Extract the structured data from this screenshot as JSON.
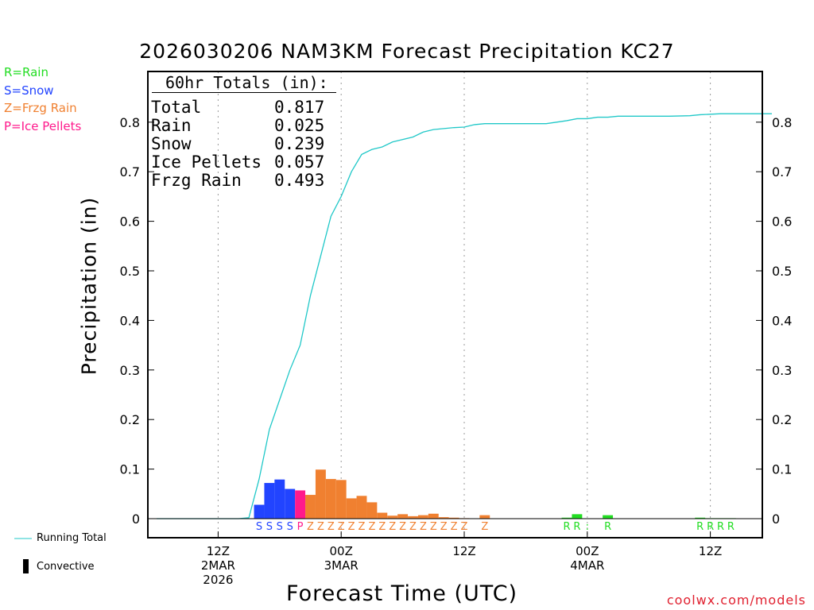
{
  "title": "2026030206 NAM3KM Forecast Precipitation KC27",
  "credit": "coolwx.com/models",
  "legend_keys": [
    {
      "text": "R=Rain",
      "color": "#22dd22"
    },
    {
      "text": "S=Snow",
      "color": "#2244ff"
    },
    {
      "text": "Z=Frzg Rain",
      "color": "#f08030"
    },
    {
      "text": "P=Ice Pellets",
      "color": "#ff1a8c"
    }
  ],
  "bottom_legend": {
    "running_total": "Running Total",
    "convective": "Convective"
  },
  "totals": {
    "heading": "60hr Totals (in):",
    "rows": [
      {
        "label": "Total",
        "value": "0.817"
      },
      {
        "label": "Rain",
        "value": "0.025"
      },
      {
        "label": "Snow",
        "value": "0.239"
      },
      {
        "label": "Ice Pellets",
        "value": "0.057"
      },
      {
        "label": "Frzg Rain",
        "value": "0.493"
      }
    ]
  },
  "colors": {
    "rain": "#22dd22",
    "snow": "#2244ff",
    "frzg": "#f08030",
    "ice": "#ff1a8c",
    "total": "#20c8c8"
  },
  "chart_data": {
    "type": "bar",
    "title": "2026030206 NAM3KM Forecast Precipitation KC27",
    "xlabel": "Forecast Time (UTC)",
    "ylabel": "Precipitation (in)",
    "ylim": [
      0,
      0.9
    ],
    "y_ticks": [
      "0",
      "0.1",
      "0.2",
      "0.3",
      "0.4",
      "0.5",
      "0.6",
      "0.7",
      "0.8"
    ],
    "y_tick_values": [
      0,
      0.1,
      0.2,
      0.3,
      0.4,
      0.5,
      0.6,
      0.7,
      0.8
    ],
    "x_range_hours": [
      0,
      60
    ],
    "x_ticks": [
      {
        "hour": 6,
        "lines": [
          "12Z",
          "2MAR",
          "2026"
        ]
      },
      {
        "hour": 18,
        "lines": [
          "00Z",
          "3MAR"
        ]
      },
      {
        "hour": 30,
        "lines": [
          "12Z"
        ]
      },
      {
        "hour": 42,
        "lines": [
          "00Z",
          "4MAR"
        ]
      },
      {
        "hour": 54,
        "lines": [
          "12Z"
        ]
      }
    ],
    "bars": [
      {
        "hour": 10,
        "value": 0.028,
        "type": "S"
      },
      {
        "hour": 11,
        "value": 0.072,
        "type": "S"
      },
      {
        "hour": 12,
        "value": 0.079,
        "type": "S"
      },
      {
        "hour": 13,
        "value": 0.06,
        "type": "S"
      },
      {
        "hour": 14,
        "value": 0.057,
        "type": "P"
      },
      {
        "hour": 15,
        "value": 0.048,
        "type": "Z"
      },
      {
        "hour": 16,
        "value": 0.099,
        "type": "Z"
      },
      {
        "hour": 17,
        "value": 0.08,
        "type": "Z"
      },
      {
        "hour": 18,
        "value": 0.078,
        "type": "Z"
      },
      {
        "hour": 19,
        "value": 0.041,
        "type": "Z"
      },
      {
        "hour": 20,
        "value": 0.046,
        "type": "Z"
      },
      {
        "hour": 21,
        "value": 0.033,
        "type": "Z"
      },
      {
        "hour": 22,
        "value": 0.012,
        "type": "Z"
      },
      {
        "hour": 23,
        "value": 0.006,
        "type": "Z"
      },
      {
        "hour": 24,
        "value": 0.009,
        "type": "Z"
      },
      {
        "hour": 25,
        "value": 0.005,
        "type": "Z"
      },
      {
        "hour": 26,
        "value": 0.007,
        "type": "Z"
      },
      {
        "hour": 27,
        "value": 0.01,
        "type": "Z"
      },
      {
        "hour": 28,
        "value": 0.003,
        "type": "Z"
      },
      {
        "hour": 29,
        "value": 0.002,
        "type": "Z"
      },
      {
        "hour": 30,
        "value": 0.001,
        "type": "Z"
      },
      {
        "hour": 32,
        "value": 0.007,
        "type": "Z"
      },
      {
        "hour": 40,
        "value": 0.002,
        "type": "R"
      },
      {
        "hour": 41,
        "value": 0.009,
        "type": "R"
      },
      {
        "hour": 44,
        "value": 0.007,
        "type": "R"
      },
      {
        "hour": 53,
        "value": 0.002,
        "type": "R"
      },
      {
        "hour": 54,
        "value": 0.001,
        "type": "R"
      },
      {
        "hour": 55,
        "value": 0.001,
        "type": "R"
      },
      {
        "hour": 56,
        "value": 0.001,
        "type": "R"
      }
    ],
    "type_labels": [
      {
        "hour": 10,
        "text": "S",
        "type": "S"
      },
      {
        "hour": 11,
        "text": "S",
        "type": "S"
      },
      {
        "hour": 12,
        "text": "S",
        "type": "S"
      },
      {
        "hour": 13,
        "text": "S",
        "type": "S"
      },
      {
        "hour": 14,
        "text": "P",
        "type": "P"
      },
      {
        "hour": 15,
        "text": "Z",
        "type": "Z"
      },
      {
        "hour": 16,
        "text": "Z",
        "type": "Z"
      },
      {
        "hour": 17,
        "text": "Z",
        "type": "Z"
      },
      {
        "hour": 18,
        "text": "Z",
        "type": "Z"
      },
      {
        "hour": 19,
        "text": "Z",
        "type": "Z"
      },
      {
        "hour": 20,
        "text": "Z",
        "type": "Z"
      },
      {
        "hour": 21,
        "text": "Z",
        "type": "Z"
      },
      {
        "hour": 22,
        "text": "Z",
        "type": "Z"
      },
      {
        "hour": 23,
        "text": "Z",
        "type": "Z"
      },
      {
        "hour": 24,
        "text": "Z",
        "type": "Z"
      },
      {
        "hour": 25,
        "text": "Z",
        "type": "Z"
      },
      {
        "hour": 26,
        "text": "Z",
        "type": "Z"
      },
      {
        "hour": 27,
        "text": "Z",
        "type": "Z"
      },
      {
        "hour": 28,
        "text": "Z",
        "type": "Z"
      },
      {
        "hour": 29,
        "text": "Z",
        "type": "Z"
      },
      {
        "hour": 30,
        "text": "Z",
        "type": "Z"
      },
      {
        "hour": 32,
        "text": "Z",
        "type": "Z"
      },
      {
        "hour": 40,
        "text": "R",
        "type": "R"
      },
      {
        "hour": 41,
        "text": "R",
        "type": "R"
      },
      {
        "hour": 42,
        "text": ":",
        "type": "R"
      },
      {
        "hour": 44,
        "text": "R",
        "type": "R"
      },
      {
        "hour": 53,
        "text": "R",
        "type": "R"
      },
      {
        "hour": 54,
        "text": "R",
        "type": "R"
      },
      {
        "hour": 55,
        "text": "R",
        "type": "R"
      },
      {
        "hour": 56,
        "text": "R",
        "type": "R"
      }
    ],
    "running_total": [
      [
        0,
        0
      ],
      [
        8,
        0
      ],
      [
        9,
        0.002
      ],
      [
        10,
        0.08
      ],
      [
        11,
        0.18
      ],
      [
        12,
        0.24
      ],
      [
        13,
        0.3
      ],
      [
        14,
        0.35
      ],
      [
        15,
        0.45
      ],
      [
        16,
        0.53
      ],
      [
        17,
        0.61
      ],
      [
        18,
        0.65
      ],
      [
        19,
        0.7
      ],
      [
        20,
        0.735
      ],
      [
        21,
        0.745
      ],
      [
        22,
        0.75
      ],
      [
        23,
        0.76
      ],
      [
        24,
        0.765
      ],
      [
        25,
        0.77
      ],
      [
        26,
        0.78
      ],
      [
        27,
        0.785
      ],
      [
        28,
        0.787
      ],
      [
        29,
        0.789
      ],
      [
        30,
        0.79
      ],
      [
        31,
        0.795
      ],
      [
        32,
        0.797
      ],
      [
        35,
        0.797
      ],
      [
        38,
        0.797
      ],
      [
        39,
        0.8
      ],
      [
        40,
        0.803
      ],
      [
        41,
        0.807
      ],
      [
        42,
        0.807
      ],
      [
        43,
        0.81
      ],
      [
        44,
        0.81
      ],
      [
        45,
        0.812
      ],
      [
        50,
        0.812
      ],
      [
        52,
        0.813
      ],
      [
        53,
        0.815
      ],
      [
        55,
        0.817
      ],
      [
        60,
        0.817
      ]
    ]
  }
}
